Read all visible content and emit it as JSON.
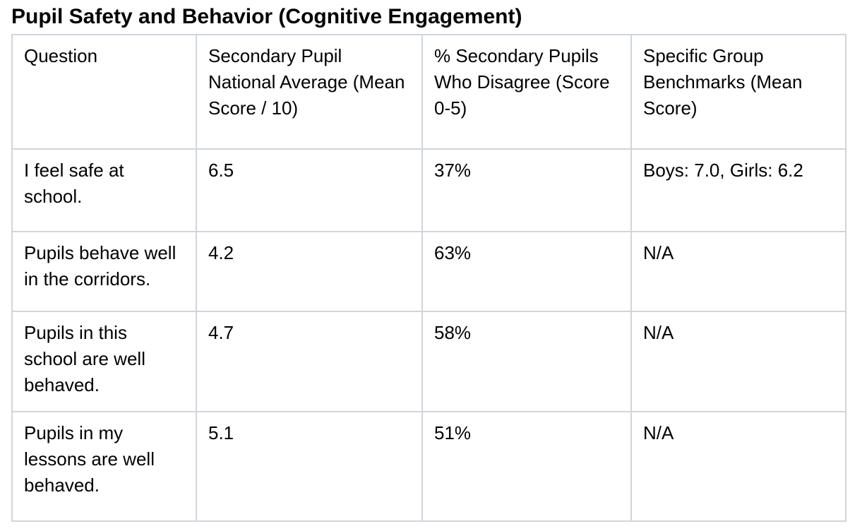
{
  "title": "Pupil Safety and Behavior (Cognitive Engagement)",
  "colors": {
    "border": "#d0d5db",
    "text": "#000000",
    "background": "#ffffff"
  },
  "table": {
    "columns": [
      {
        "label": "Question"
      },
      {
        "label": "Secondary Pupil National Average (Mean Score / 10)"
      },
      {
        "label": "% Secondary Pupils Who Disagree (Score 0-5)"
      },
      {
        "label": "Specific Group Benchmarks (Mean Score)"
      }
    ],
    "rows": [
      {
        "cells": [
          {
            "text": "I feel safe at school.",
            "bold": true
          },
          {
            "text": "6.5",
            "bold": false
          },
          {
            "text": "37%",
            "bold": true
          },
          {
            "text": "Boys: 7.0, Girls: 6.2",
            "bold": false
          }
        ]
      },
      {
        "cells": [
          {
            "text": "Pupils behave well in the corridors.",
            "bold": false
          },
          {
            "text": "4.2",
            "bold": true
          },
          {
            "text": "63%",
            "bold": false
          },
          {
            "text": "N/A",
            "bold": false
          }
        ]
      },
      {
        "cells": [
          {
            "text": "Pupils in this school are well behaved.",
            "bold": false
          },
          {
            "text": "4.7",
            "bold": false
          },
          {
            "text": "58%",
            "bold": false
          },
          {
            "text": "N/A",
            "bold": false
          }
        ]
      },
      {
        "cells": [
          {
            "text": "Pupils in my lessons are well behaved.",
            "bold": false
          },
          {
            "text": "5.1",
            "bold": false
          },
          {
            "text": "51%",
            "bold": false
          },
          {
            "text": "N/A",
            "bold": false
          }
        ]
      }
    ]
  }
}
